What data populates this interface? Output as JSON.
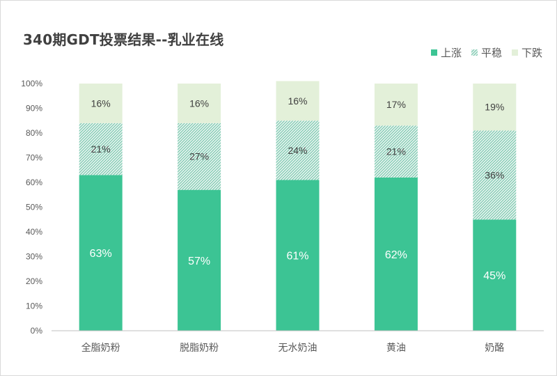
{
  "chart_data": {
    "type": "bar",
    "stacked": "percent",
    "title": "340期GDT投票结果--乳业在线",
    "categories": [
      "全脂奶粉",
      "脱脂奶粉",
      "无水奶油",
      "黄油",
      "奶酪"
    ],
    "series": [
      {
        "name": "上涨",
        "values": [
          63,
          57,
          61,
          62,
          45
        ],
        "color": "#3cc494",
        "labels": [
          "63%",
          "57%",
          "61%",
          "62%",
          "45%"
        ]
      },
      {
        "name": "平稳",
        "values": [
          21,
          27,
          24,
          21,
          36
        ],
        "color": "#9bd4c2",
        "pattern": "hatch",
        "labels": [
          "21%",
          "27%",
          "24%",
          "21%",
          "36%"
        ]
      },
      {
        "name": "下跌",
        "values": [
          16,
          16,
          16,
          17,
          19
        ],
        "color": "#e3f0d9",
        "labels": [
          "16%",
          "16%",
          "16%",
          "17%",
          "19%"
        ]
      }
    ],
    "yticks": [
      "0%",
      "10%",
      "20%",
      "30%",
      "40%",
      "50%",
      "60%",
      "70%",
      "80%",
      "90%",
      "100%"
    ],
    "ylim": [
      0,
      100
    ],
    "grid": false,
    "legend": "top-right"
  }
}
